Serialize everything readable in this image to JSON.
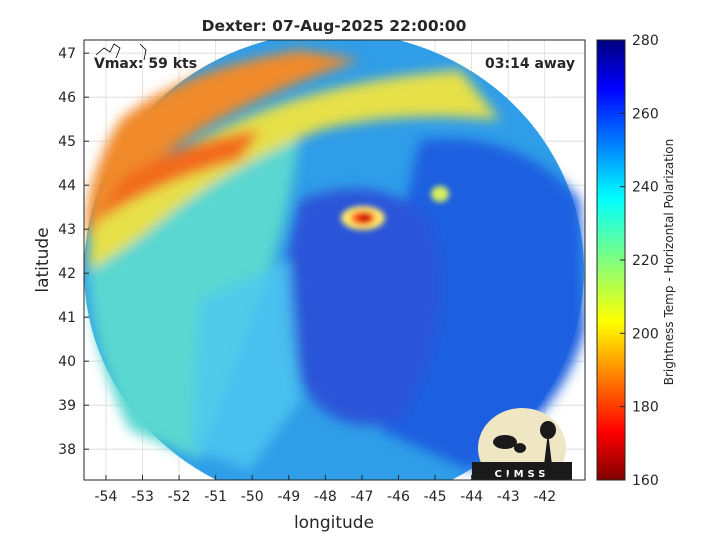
{
  "chart_data": {
    "type": "heatmap",
    "title": "Dexter: 07-Aug-2025 22:00:00",
    "xlabel": "longitude",
    "ylabel": "latitude",
    "xlim": [
      -54.6,
      -40.9
    ],
    "ylim": [
      37.3,
      47.3
    ],
    "x_ticks": [
      -54,
      -53,
      -52,
      -51,
      -50,
      -49,
      -48,
      -47,
      -46,
      -45,
      -44,
      -43,
      -42
    ],
    "y_ticks": [
      38,
      39,
      40,
      41,
      42,
      43,
      44,
      45,
      46,
      47
    ],
    "grid": true,
    "annotations": {
      "vmax": "Vmax: 59 kts",
      "time_away": "03:14 away"
    },
    "colorbar": {
      "label": "Brightness Temp - Horizontal Polarization",
      "range": [
        160,
        280
      ],
      "ticks": [
        160,
        180,
        200,
        220,
        240,
        260,
        280
      ],
      "colormap": "jet"
    },
    "storm_center": {
      "lon": -47.0,
      "lat": 42.9,
      "min_temp": 165
    },
    "swath": {
      "center_lon": -47.7,
      "center_lat": 42.1,
      "radius_deg_lon": 6.8
    },
    "features": [
      {
        "name": "warm band NW",
        "lon": -51.5,
        "lat": 44.8,
        "temp": 195
      },
      {
        "name": "cold region E",
        "lon": -43.5,
        "lat": 42.5,
        "temp": 262
      },
      {
        "name": "ambient ocean",
        "lon": -50.0,
        "lat": 40.5,
        "temp": 235
      }
    ],
    "logo": "CIMSS"
  },
  "colors": {
    "title": "#262626",
    "grid": "#dcdcdc",
    "axis": "#262626"
  }
}
